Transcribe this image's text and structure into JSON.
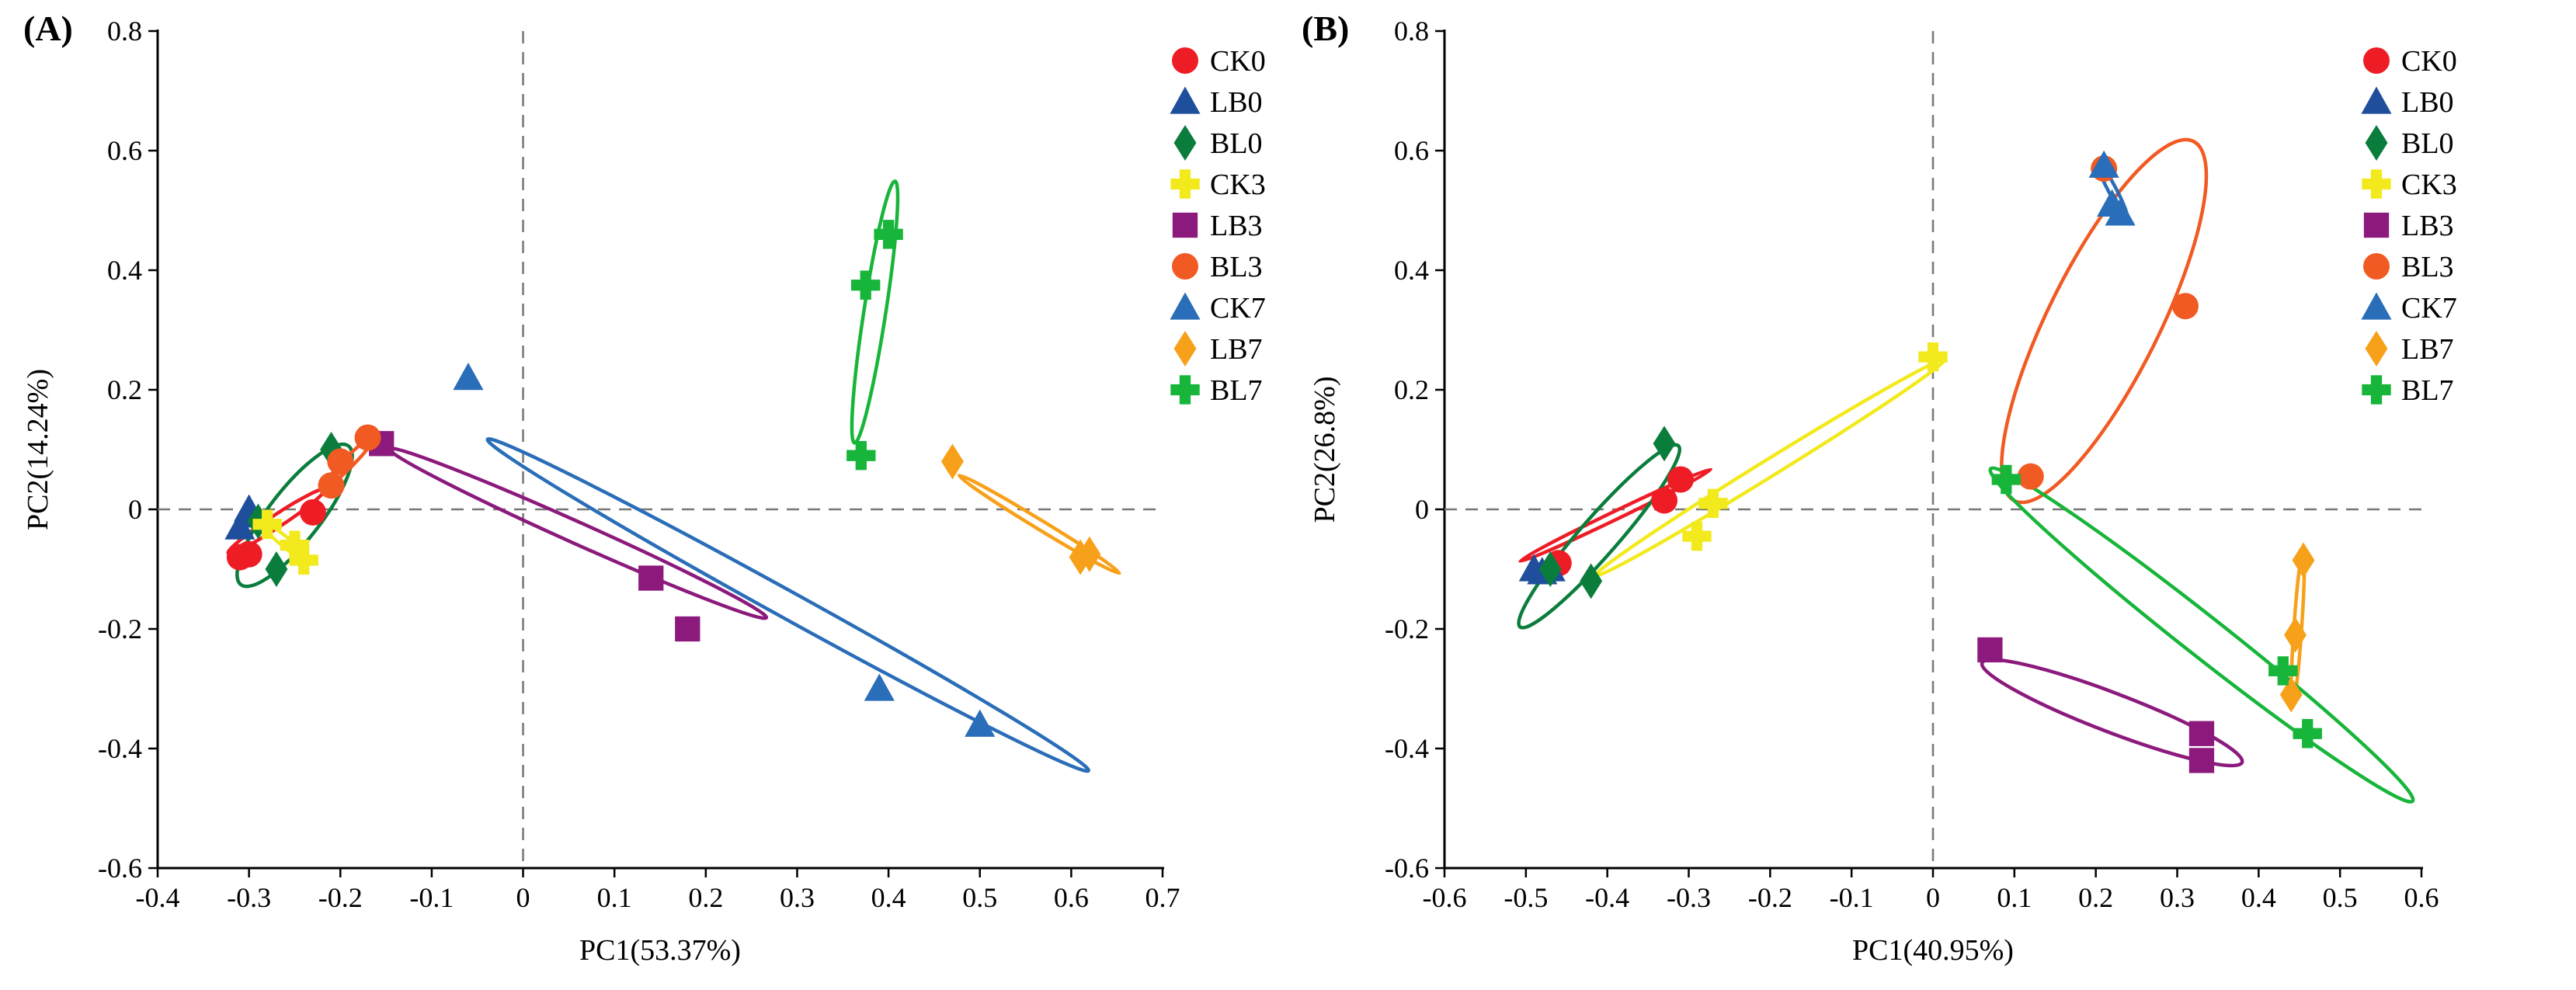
{
  "chart_data": [
    {
      "type": "scatter",
      "panel_label": "(A)",
      "xlabel": "PC1(53.37%)",
      "ylabel": "PC2(14.24%)",
      "xlim": [
        -0.4,
        0.7
      ],
      "ylim": [
        -0.6,
        0.8
      ],
      "xticks": [
        "-0.4",
        "-0.3",
        "-0.2",
        "-0.1",
        "0",
        "0.1",
        "0.2",
        "0.3",
        "0.4",
        "0.5",
        "0.6",
        "0.7"
      ],
      "yticks": [
        "-0.6",
        "-0.4",
        "-0.2",
        "0",
        "0.2",
        "0.4",
        "0.6",
        "0.8"
      ],
      "reference_lines": {
        "x": 0,
        "y": 0
      },
      "legend_position": "right",
      "series": [
        {
          "name": "CK0",
          "color": "#ee1c25",
          "marker": "circle",
          "points": [
            [
              -0.31,
              -0.08
            ],
            [
              -0.3,
              -0.075
            ],
            [
              -0.23,
              -0.005
            ]
          ],
          "ellipse": {
            "cx": -0.27,
            "cy": -0.02,
            "rx": 0.075,
            "ry": 0.008,
            "angle": 0.79
          }
        },
        {
          "name": "LB0",
          "color": "#1f4e9c",
          "marker": "triangle",
          "points": [
            [
              -0.31,
              -0.03
            ],
            [
              -0.3,
              -0.01
            ],
            [
              -0.3,
              0.0
            ]
          ],
          "ellipse": {
            "cx": -0.305,
            "cy": -0.015,
            "rx": 0.02,
            "ry": 0.006,
            "angle": 1.2
          }
        },
        {
          "name": "BL0",
          "color": "#0a7d3c",
          "marker": "diamond",
          "points": [
            [
              -0.27,
              -0.1
            ],
            [
              -0.29,
              -0.02
            ],
            [
              -0.21,
              0.1
            ]
          ],
          "ellipse": {
            "cx": -0.25,
            "cy": -0.01,
            "rx": 0.13,
            "ry": 0.03,
            "angle": 1.1
          }
        },
        {
          "name": "CK3",
          "color": "#f2ea1d",
          "marker": "plus",
          "points": [
            [
              -0.28,
              -0.025
            ],
            [
              -0.25,
              -0.06
            ],
            [
              -0.24,
              -0.085
            ]
          ],
          "ellipse": {
            "cx": -0.26,
            "cy": -0.055,
            "rx": 0.04,
            "ry": 0.006,
            "angle": -0.9
          }
        },
        {
          "name": "LB3",
          "color": "#8b1a7c",
          "marker": "square",
          "points": [
            [
              -0.155,
              0.11
            ],
            [
              0.14,
              -0.115
            ],
            [
              0.18,
              -0.2
            ]
          ],
          "ellipse": {
            "cx": 0.06,
            "cy": -0.04,
            "rx": 0.25,
            "ry": 0.015,
            "angle": -0.6
          }
        },
        {
          "name": "BL3",
          "color": "#f15a22",
          "marker": "circle",
          "points": [
            [
              -0.21,
              0.04
            ],
            [
              -0.2,
              0.08
            ],
            [
              -0.17,
              0.12
            ]
          ],
          "ellipse": {
            "cx": -0.19,
            "cy": 0.08,
            "rx": 0.05,
            "ry": 0.006,
            "angle": 1.0
          }
        },
        {
          "name": "CK7",
          "color": "#2a6db8",
          "marker": "triangle",
          "points": [
            [
              -0.06,
              0.22
            ],
            [
              0.39,
              -0.3
            ],
            [
              0.5,
              -0.36
            ]
          ],
          "ellipse": {
            "cx": 0.29,
            "cy": -0.16,
            "rx": 0.43,
            "ry": 0.018,
            "angle": -0.7
          }
        },
        {
          "name": "LB7",
          "color": "#f7a11a",
          "marker": "diamond",
          "points": [
            [
              0.47,
              0.08
            ],
            [
              0.61,
              -0.08
            ],
            [
              0.62,
              -0.075
            ]
          ],
          "ellipse": {
            "cx": 0.565,
            "cy": -0.025,
            "rx": 0.12,
            "ry": 0.006,
            "angle": -0.75
          }
        },
        {
          "name": "BL7",
          "color": "#17b53a",
          "marker": "plus",
          "points": [
            [
              0.37,
              0.09
            ],
            [
              0.375,
              0.375
            ],
            [
              0.4,
              0.46
            ]
          ],
          "ellipse": {
            "cx": 0.385,
            "cy": 0.33,
            "rx": 0.22,
            "ry": 0.012,
            "angle": 1.47
          }
        }
      ]
    },
    {
      "type": "scatter",
      "panel_label": "(B)",
      "xlabel": "PC1(40.95%)",
      "ylabel": "PC2(26.8%)",
      "xlim": [
        -0.6,
        0.6
      ],
      "ylim": [
        -0.6,
        0.8
      ],
      "xticks": [
        "-0.6",
        "-0.5",
        "-0.4",
        "-0.3",
        "-0.2",
        "-0.1",
        "0",
        "0.1",
        "0.2",
        "0.3",
        "0.4",
        "0.5",
        "0.6"
      ],
      "yticks": [
        "-0.6",
        "-0.4",
        "-0.2",
        "0",
        "0.2",
        "0.4",
        "0.6",
        "0.8"
      ],
      "reference_lines": {
        "x": 0,
        "y": 0
      },
      "legend_position": "right",
      "series": [
        {
          "name": "CK0",
          "color": "#ee1c25",
          "marker": "circle",
          "points": [
            [
              -0.46,
              -0.09
            ],
            [
              -0.33,
              0.015
            ],
            [
              -0.31,
              0.05
            ]
          ],
          "ellipse": {
            "cx": -0.39,
            "cy": -0.01,
            "rx": 0.14,
            "ry": 0.006,
            "angle": 0.58
          }
        },
        {
          "name": "LB0",
          "color": "#1f4e9c",
          "marker": "triangle",
          "points": [
            [
              -0.49,
              -0.1
            ],
            [
              -0.48,
              -0.105
            ],
            [
              -0.47,
              -0.1
            ]
          ],
          "ellipse": {
            "cx": -0.48,
            "cy": -0.102,
            "rx": 0.015,
            "ry": 0.004,
            "angle": 0.0
          }
        },
        {
          "name": "BL0",
          "color": "#0a7d3c",
          "marker": "diamond",
          "points": [
            [
              -0.33,
              0.11
            ],
            [
              -0.42,
              -0.12
            ],
            [
              -0.47,
              -0.1
            ]
          ],
          "ellipse": {
            "cx": -0.41,
            "cy": -0.045,
            "rx": 0.18,
            "ry": 0.025,
            "angle": 1.0
          }
        },
        {
          "name": "CK3",
          "color": "#f2ea1d",
          "marker": "plus",
          "points": [
            [
              0.0,
              0.255
            ],
            [
              -0.27,
              0.01
            ],
            [
              -0.29,
              -0.045
            ]
          ],
          "ellipse": {
            "cx": -0.2,
            "cy": 0.07,
            "rx": 0.28,
            "ry": 0.012,
            "angle": 0.7
          }
        },
        {
          "name": "LB3",
          "color": "#8b1a7c",
          "marker": "square",
          "points": [
            [
              0.07,
              -0.235
            ],
            [
              0.33,
              -0.375
            ],
            [
              0.33,
              -0.42
            ]
          ],
          "ellipse": {
            "cx": 0.22,
            "cy": -0.34,
            "rx": 0.18,
            "ry": 0.03,
            "angle": -0.48
          }
        },
        {
          "name": "BL3",
          "color": "#f15a22",
          "marker": "circle",
          "points": [
            [
              0.12,
              0.055
            ],
            [
              0.31,
              0.34
            ],
            [
              0.21,
              0.57
            ]
          ],
          "ellipse": {
            "cx": 0.21,
            "cy": 0.315,
            "rx": 0.32,
            "ry": 0.07,
            "angle": 1.22
          }
        },
        {
          "name": "CK7",
          "color": "#2a6db8",
          "marker": "triangle",
          "points": [
            [
              0.21,
              0.575
            ],
            [
              0.22,
              0.51
            ],
            [
              0.23,
              0.495
            ]
          ],
          "ellipse": {
            "cx": 0.22,
            "cy": 0.535,
            "rx": 0.05,
            "ry": 0.005,
            "angle": -1.2
          }
        },
        {
          "name": "LB7",
          "color": "#f7a11a",
          "marker": "diamond",
          "points": [
            [
              0.455,
              -0.085
            ],
            [
              0.445,
              -0.21
            ],
            [
              0.44,
              -0.31
            ]
          ],
          "ellipse": {
            "cx": 0.448,
            "cy": -0.2,
            "rx": 0.13,
            "ry": 0.004,
            "angle": 1.52
          }
        },
        {
          "name": "BL7",
          "color": "#17b53a",
          "marker": "plus",
          "points": [
            [
              0.09,
              0.05
            ],
            [
              0.43,
              -0.27
            ],
            [
              0.46,
              -0.375
            ]
          ],
          "ellipse": {
            "cx": 0.33,
            "cy": -0.21,
            "rx": 0.38,
            "ry": 0.028,
            "angle": -0.82
          }
        }
      ]
    }
  ]
}
